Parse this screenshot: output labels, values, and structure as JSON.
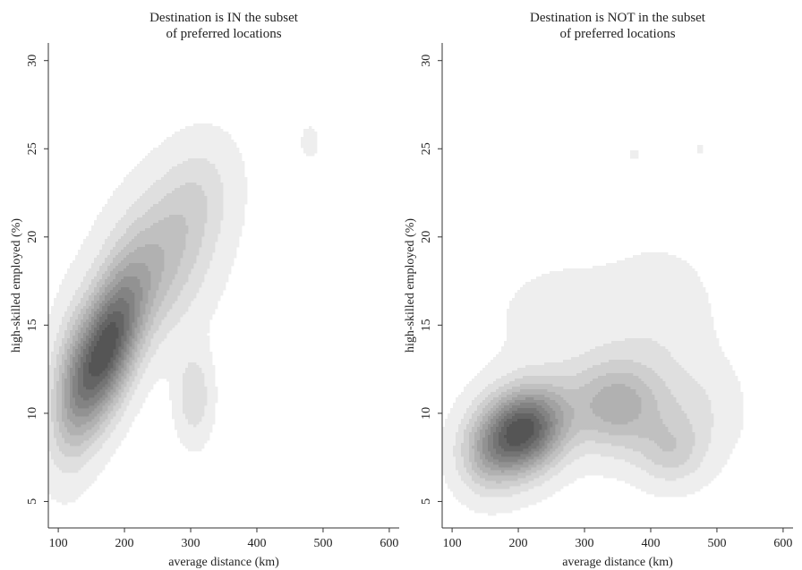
{
  "chart_data": [
    {
      "type": "heatmap",
      "subtype": "bivariate kernel density contour",
      "title_lines": [
        "Destination is IN the subset",
        "of preferred locations"
      ],
      "xlabel": "average distance (km)",
      "ylabel": "high-skilled employed (%)",
      "xticks": [
        100,
        200,
        300,
        400,
        500,
        600
      ],
      "yticks": [
        5,
        10,
        15,
        20,
        25,
        30
      ],
      "xlim": [
        85,
        615
      ],
      "ylim": [
        3.5,
        31
      ],
      "grid": false,
      "fill_color": "#4a4a4a",
      "density_peak": {
        "x": 165,
        "y": 13.5
      },
      "components": [
        {
          "x": 170,
          "y": 13.5,
          "sx": 38,
          "sy": 3.0,
          "rho": 0.55,
          "w": 1.0
        },
        {
          "x": 250,
          "y": 18.5,
          "sx": 55,
          "sy": 3.0,
          "rho": 0.3,
          "w": 0.35
        },
        {
          "x": 310,
          "y": 22.5,
          "sx": 40,
          "sy": 2.2,
          "rho": 0.2,
          "w": 0.14
        },
        {
          "x": 305,
          "y": 11.0,
          "sx": 18,
          "sy": 1.7,
          "rho": 0.0,
          "w": 0.22
        },
        {
          "x": 120,
          "y": 11.5,
          "sx": 25,
          "sy": 3.0,
          "rho": 0.2,
          "w": 0.25
        },
        {
          "x": 480,
          "y": 25.4,
          "sx": 9,
          "sy": 0.6,
          "rho": 0.0,
          "w": 0.1
        }
      ]
    },
    {
      "type": "heatmap",
      "subtype": "bivariate kernel density contour",
      "title_lines": [
        "Destination is NOT in the subset",
        "of preferred locations"
      ],
      "xlabel": "average distance (km)",
      "ylabel": "high-skilled employed (%)",
      "xticks": [
        100,
        200,
        300,
        400,
        500,
        600
      ],
      "yticks": [
        5,
        10,
        15,
        20,
        25,
        30
      ],
      "xlim": [
        85,
        615
      ],
      "ylim": [
        3.5,
        31
      ],
      "grid": false,
      "fill_color": "#4a4a4a",
      "density_peak": {
        "x": 205,
        "y": 9.0
      },
      "components": [
        {
          "x": 205,
          "y": 9.0,
          "sx": 45,
          "sy": 1.7,
          "rho": 0.2,
          "w": 1.0
        },
        {
          "x": 350,
          "y": 10.5,
          "sx": 50,
          "sy": 1.8,
          "rho": 0.0,
          "w": 0.45
        },
        {
          "x": 430,
          "y": 7.8,
          "sx": 35,
          "sy": 1.3,
          "rho": 0.0,
          "w": 0.22
        },
        {
          "x": 470,
          "y": 10.2,
          "sx": 45,
          "sy": 2.0,
          "rho": 0.0,
          "w": 0.12
        },
        {
          "x": 280,
          "y": 15.5,
          "sx": 95,
          "sy": 2.6,
          "rho": 0.0,
          "w": 0.06
        },
        {
          "x": 420,
          "y": 15.5,
          "sx": 50,
          "sy": 2.5,
          "rho": 0.0,
          "w": 0.08
        },
        {
          "x": 150,
          "y": 7.5,
          "sx": 30,
          "sy": 1.5,
          "rho": 0.0,
          "w": 0.18
        },
        {
          "x": 375,
          "y": 24.7,
          "sx": 14,
          "sy": 0.6,
          "rho": 0.0,
          "w": 0.04
        },
        {
          "x": 475,
          "y": 25.0,
          "sx": 10,
          "sy": 0.5,
          "rho": 0.0,
          "w": 0.04
        }
      ]
    }
  ]
}
